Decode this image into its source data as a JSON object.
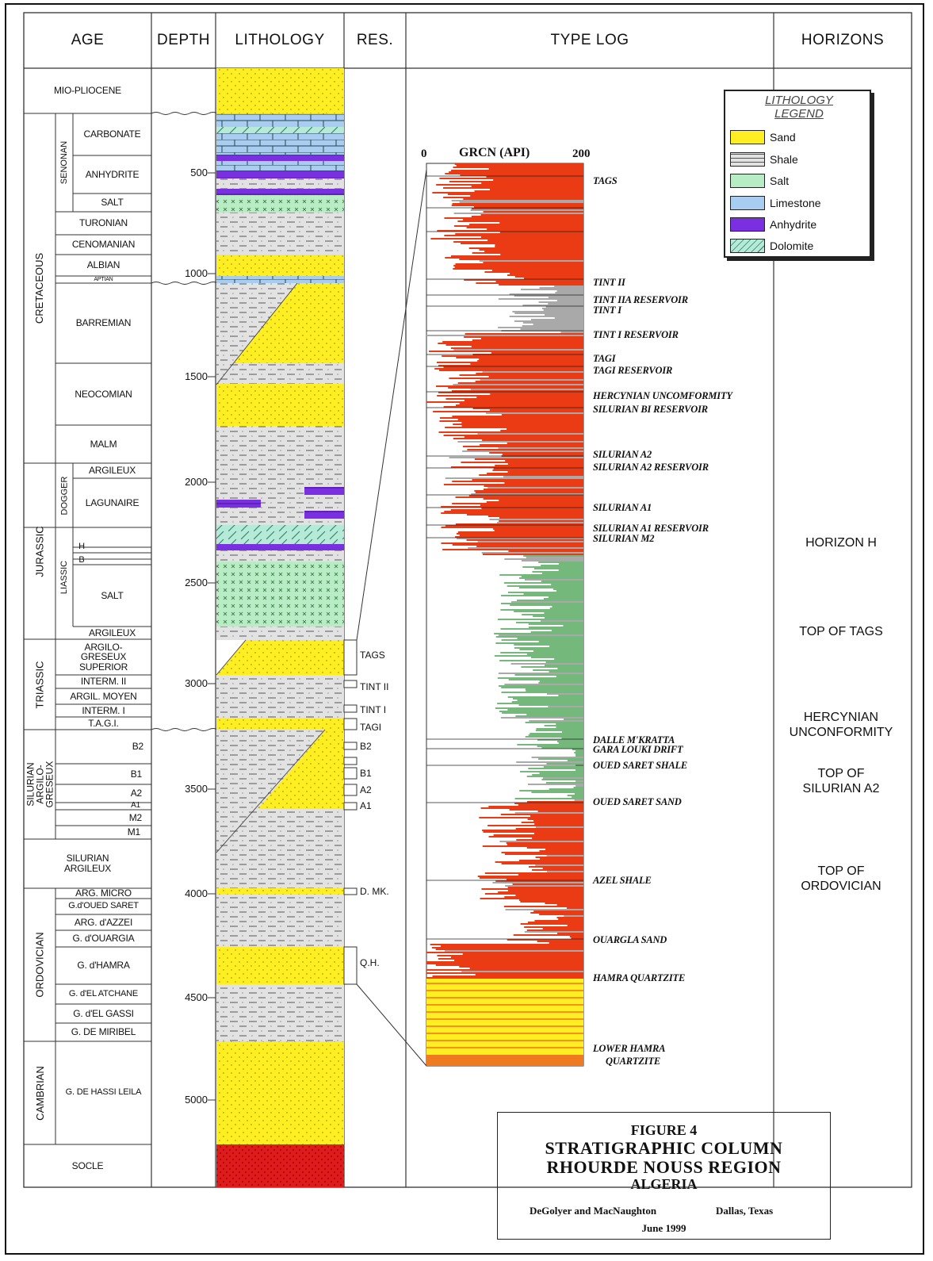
{
  "headers": {
    "age": "AGE",
    "depth": "DEPTH",
    "lithology": "LITHOLOGY",
    "res": "RES.",
    "type_log": "TYPE LOG",
    "horizons": "HORIZONS"
  },
  "age_labels": {
    "mio_pliocene": "MIO-PLIOCENE",
    "cretaceous": "CRETACEOUS",
    "senonan": "SENONAN",
    "jurassic": "JURASSIC",
    "dogger": "DOGGER",
    "liassic": "LIASSIC",
    "triassic": "TRIASSIC",
    "silurian_argilo_greseux": "SILURIAN ARGILO-GRESEUX",
    "ordovician": "ORDOVICIAN",
    "cambrian": "CAMBRIAN",
    "carbonate": "CARBONATE",
    "anhydrite": "ANHYDRITE",
    "salt_senonan": "SALT",
    "turonian": "TURONIAN",
    "cenomanian": "CENOMANIAN",
    "albian": "ALBIAN",
    "aptian": "APTIAN",
    "barremian": "BARREMIAN",
    "neocomian": "NEOCOMIAN",
    "malm": "MALM",
    "argileux_dogger": "ARGILEUX",
    "lagunaire": "LAGUNAIRE",
    "h": "H",
    "b": "B",
    "salt_lias": "SALT",
    "argileux_lias": "ARGILEUX",
    "argilo_greseux_superior": "ARGILO-\nGRESEUX\nSUPERIOR",
    "interm_ii": "INTERM. II",
    "argil_moyen": "ARGIL. MOYEN",
    "interm_i": "INTERM. I",
    "tagi": "T.A.G.I.",
    "b2": "B2",
    "b1": "B1",
    "a2": "A2",
    "a1": "A1",
    "m2": "M2",
    "m1": "M1",
    "silurian_argileux": "SILURIAN\nARGILEUX",
    "arg_micro": "ARG. MICRO",
    "g_oued_saret": "G.d'OUED SARET",
    "arg_azzel": "ARG. d'AZZEI",
    "g_ouargla": "G. d'OUARGIA",
    "g_hamra": "G. d'HAMRA",
    "g_el_atchane": "G. d'EL ATCHANE",
    "g_el_gassi": "G. d'EL GASSI",
    "g_de_miribel": "G. DE MIRIBEL",
    "g_de_hassi_leila": "G. DE HASSI LEILA",
    "socle": "SOCLE"
  },
  "depth_ticks": [
    "500",
    "1000",
    "1500",
    "2000",
    "2500",
    "3000",
    "3500",
    "4000",
    "4500",
    "5000"
  ],
  "res_labels": {
    "tags": "TAGS",
    "tint_ii": "TINT II",
    "tint_i": "TINT I",
    "tagi": "TAGI",
    "b2": "B2",
    "b1": "B1",
    "a2": "A2",
    "a1": "A1",
    "d_mk": "D. MK.",
    "qh": "Q.H."
  },
  "log_axis": {
    "min": "0",
    "title": "GRCN (API)",
    "max": "200"
  },
  "log_markers": {
    "tags": "TAGS",
    "tint_ii": "TINT II",
    "tint_iia_res": "TINT IIA RESERVOIR",
    "tint_i": "TINT I",
    "tint_i_res": "TINT I RESERVOIR",
    "tagi": "TAGI",
    "tagi_res": "TAGI RESERVOIR",
    "hercynian": "HERCYNIAN UNCOMFORMITY",
    "silurian_bi_res": "SILURIAN BI RESERVOIR",
    "silurian_a2": "SILURIAN A2",
    "silurian_a2_res": "SILURIAN A2 RESERVOIR",
    "silurian_a1": "SILURIAN A1",
    "silurian_a1_res": "SILURIAN A1 RESERVOIR",
    "silurian_m2": "SILURIAN M2",
    "dalle": "DALLE M'KRATTA",
    "gara": "GARA LOUKI DRIFT",
    "oued_saret_shale": "OUED SARET SHALE",
    "oued_saret_sand": "OUED SARET SAND",
    "azel_shale": "AZEL SHALE",
    "ouargla_sand": "OUARGLA SAND",
    "hamra_quartzite": "HAMRA QUARTZITE",
    "lower_hamra": "LOWER HAMRA",
    "quartzite": "QUARTZITE"
  },
  "horizons": {
    "h": "HORIZON H",
    "tags": "TOP OF TAGS",
    "hercynian": "HERCYNIAN\nUNCONFORMITY",
    "silurian_a2": "TOP OF\nSILURIAN A2",
    "ordovician": "TOP OF\nORDOVICIAN"
  },
  "legend": {
    "title": "LITHOLOGY\nLEGEND",
    "sand": "Sand",
    "shale": "Shale",
    "salt": "Salt",
    "limestone": "Limestone",
    "anhydrite": "Anhydrite",
    "dolomite": "Dolomite"
  },
  "caption": {
    "figure": "FIGURE 4",
    "line1": "STRATIGRAPHIC COLUMN",
    "line2": "RHOURDE NOUSS REGION",
    "line3": "ALGERIA",
    "author": "DeGolyer and MacNaughton",
    "place": "Dallas, Texas",
    "date": "June 1999"
  },
  "colors": {
    "sand": "#ffee22",
    "shale": "#dcdcdc",
    "salt": "#b8ecc4",
    "limestone": "#a9cdf0",
    "anhydrite": "#7a2fe0",
    "dolomite": "#b6ead8",
    "basement": "#e01b1b",
    "log_red": "#ea3b14",
    "log_green": "#74b87c",
    "log_grey": "#a9a9a9"
  }
}
